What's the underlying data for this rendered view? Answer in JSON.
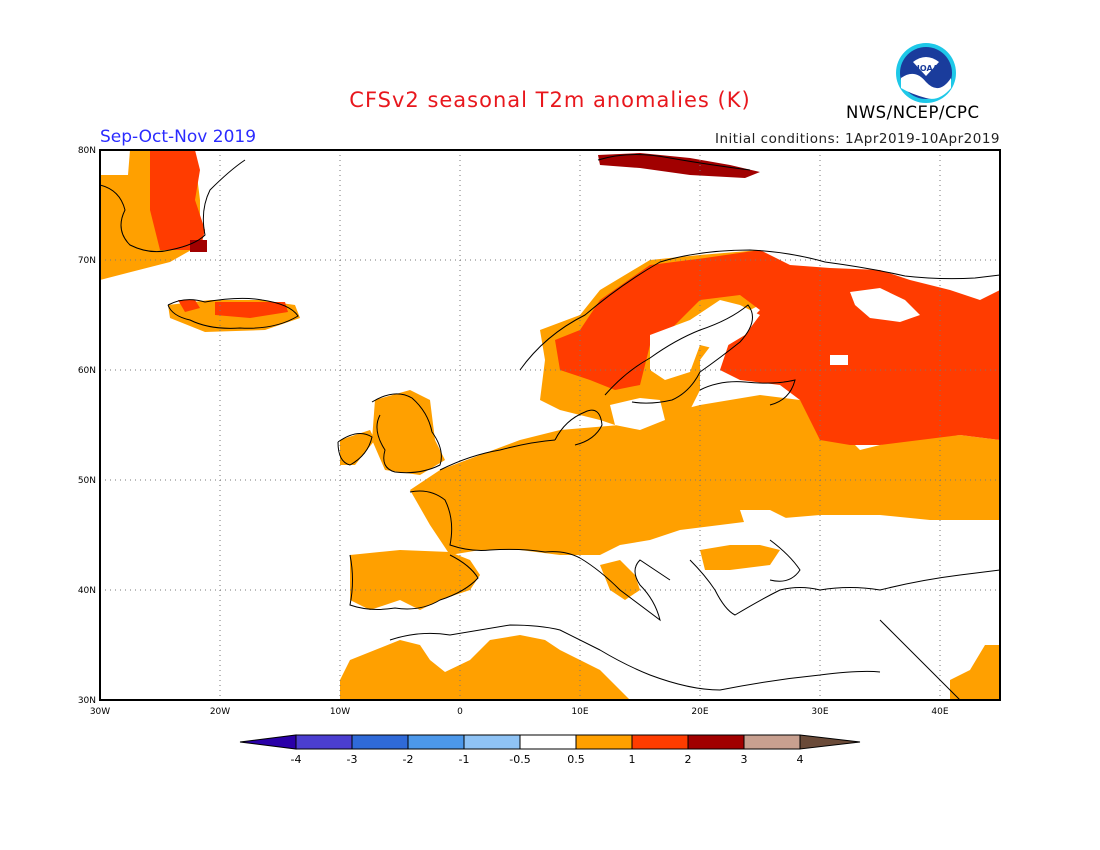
{
  "header": {
    "title": "CFSv2 seasonal T2m anomalies (K)",
    "season": "Sep-Oct-Nov 2019",
    "initial_conditions": "Initial conditions: 1Apr2019-10Apr2019",
    "agency": "NWS/NCEP/CPC",
    "logo_text": "NOAA"
  },
  "axes": {
    "lat_labels": [
      "80N",
      "70N",
      "60N",
      "50N",
      "40N",
      "30N"
    ],
    "lon_labels": [
      "30W",
      "20W",
      "10W",
      "0",
      "10E",
      "20E",
      "30E",
      "40E"
    ]
  },
  "colorbar": {
    "ticks": [
      "-4",
      "-3",
      "-2",
      "-1",
      "-0.5",
      "0.5",
      "1",
      "2",
      "3",
      "4"
    ],
    "colors": [
      "#2a00a8",
      "#4b3ed0",
      "#2f6ad8",
      "#4c98ea",
      "#8fc3f5",
      "#ffffff",
      "#ffa000",
      "#ff3c00",
      "#a10000",
      "#c8a090",
      "#6a4a38"
    ]
  }
}
